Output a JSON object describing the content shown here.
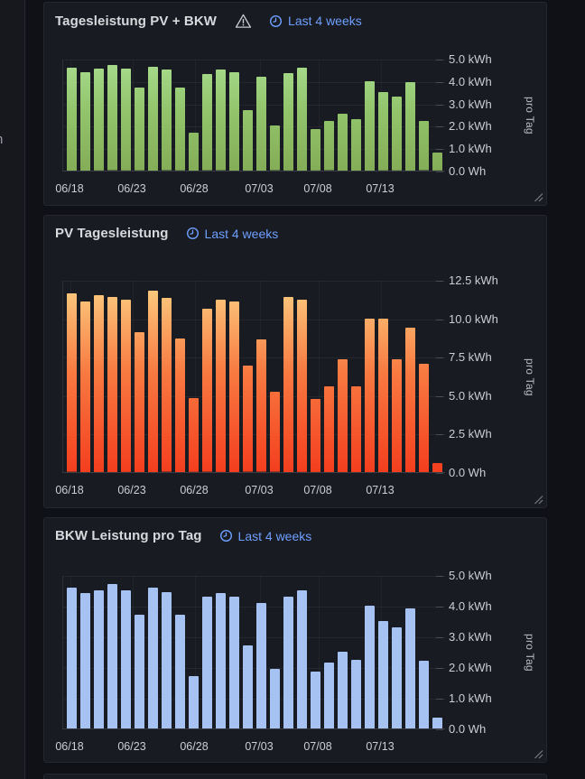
{
  "sidebar": {
    "fragment_text": "n"
  },
  "colors": {
    "link": "#6e9fff",
    "green_top": "#a9dd8e",
    "green_mid": "#93c56d",
    "green_bottom": "#84ad57",
    "orange_top": "#fcd284",
    "orange_mid": "#f87a41",
    "orange_bottom": "#f43e1e",
    "blue": "#a5c2f3"
  },
  "chart_data": [
    {
      "type": "bar",
      "title": "Tagesleistung PV + BKW",
      "has_warning_icon": true,
      "time_range": "Last 4 weeks",
      "ylabel_right": "pro Tag",
      "unit": "kWh",
      "ylim": [
        0,
        5
      ],
      "grid": true,
      "axis_position": "right",
      "y_tick_labels": [
        "5.0 kWh",
        "4.0 kWh",
        "3.0 kWh",
        "2.0 kWh",
        "1.0 kWh",
        "0.0 Wh"
      ],
      "x_tick_labels": [
        "06/18",
        "06/23",
        "06/28",
        "07/03",
        "07/08",
        "07/13"
      ],
      "bar_style": "green-gradient",
      "values": [
        4.6,
        4.4,
        4.55,
        4.7,
        4.55,
        3.7,
        4.65,
        4.5,
        3.7,
        1.7,
        4.3,
        4.5,
        4.4,
        2.7,
        4.2,
        2.0,
        4.35,
        4.6,
        1.85,
        2.2,
        2.55,
        2.3,
        4.0,
        3.5,
        3.3,
        3.95,
        2.2,
        0.8
      ]
    },
    {
      "type": "bar",
      "title": "PV Tagesleistung",
      "has_warning_icon": false,
      "time_range": "Last 4 weeks",
      "ylabel_right": "pro Tag",
      "unit": "kWh",
      "ylim": [
        0,
        12.5
      ],
      "grid": true,
      "axis_position": "right",
      "y_tick_labels": [
        "12.5 kWh",
        "10.0 kWh",
        "7.5 kWh",
        "5.0 kWh",
        "2.5 kWh",
        "0.0 Wh"
      ],
      "x_tick_labels": [
        "06/18",
        "06/23",
        "06/28",
        "07/03",
        "07/08",
        "07/13"
      ],
      "bar_style": "orange-gradient",
      "values": [
        11.6,
        11.1,
        11.5,
        11.4,
        11.2,
        9.1,
        11.8,
        11.3,
        8.7,
        4.8,
        10.6,
        11.2,
        11.1,
        6.9,
        8.6,
        5.2,
        11.4,
        11.2,
        4.75,
        5.6,
        7.35,
        5.6,
        10.0,
        10.0,
        7.35,
        9.4,
        7.05,
        0.6
      ]
    },
    {
      "type": "bar",
      "title": "BKW Leistung pro Tag",
      "has_warning_icon": false,
      "time_range": "Last 4 weeks",
      "ylabel_right": "pro Tag",
      "unit": "kWh",
      "ylim": [
        0,
        5
      ],
      "grid": true,
      "axis_position": "right",
      "y_tick_labels": [
        "5.0 kWh",
        "4.0 kWh",
        "3.0 kWh",
        "2.0 kWh",
        "1.0 kWh",
        "0.0 Wh"
      ],
      "x_tick_labels": [
        "06/18",
        "06/23",
        "06/28",
        "07/03",
        "07/08",
        "07/13"
      ],
      "bar_style": "blue-solid",
      "values": [
        4.6,
        4.4,
        4.5,
        4.7,
        4.5,
        3.7,
        4.6,
        4.45,
        3.7,
        1.7,
        4.3,
        4.4,
        4.3,
        2.7,
        4.1,
        1.95,
        4.3,
        4.5,
        1.85,
        2.15,
        2.5,
        2.25,
        4.0,
        3.5,
        3.3,
        3.9,
        2.2,
        0.35
      ]
    }
  ]
}
